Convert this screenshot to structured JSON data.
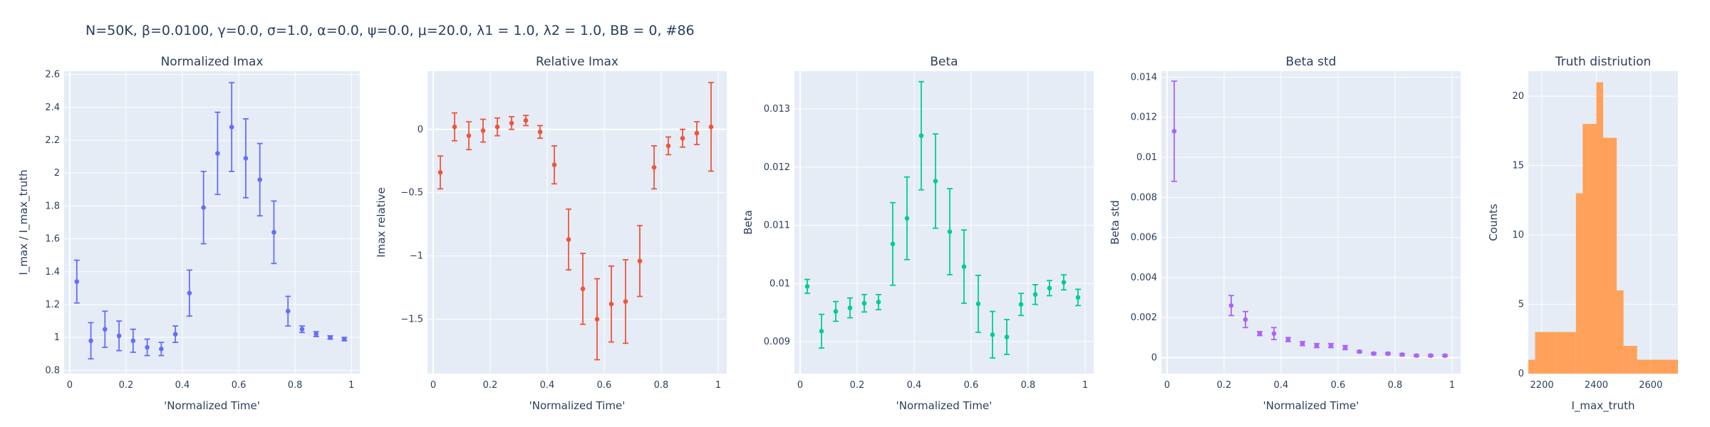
{
  "figure": {
    "suptitle": "N=50K, β=0.0100, γ=0.0, σ=1.0,  α=0.0, ψ=0.0, μ=20.0, λ1 = 1.0, λ2 = 1.0, BB = 0, #86",
    "plot_bg": "#e5ecf6",
    "grid_color": "#ffffff"
  },
  "chart_data": [
    {
      "type": "scatter",
      "title": "Normalized Imax",
      "xlabel": "'Normalized Time'",
      "ylabel": "I_max / I_max_truth",
      "color": "#636efa",
      "xlim": [
        -0.02,
        1.03
      ],
      "ylim": [
        0.78,
        2.62
      ],
      "xticks": [
        0,
        0.2,
        0.4,
        0.6,
        0.8,
        1
      ],
      "xtick_labels": [
        "0",
        "0.2",
        "0.4",
        "0.6",
        "0.8",
        "1"
      ],
      "yticks": [
        0.8,
        1,
        1.2,
        1.4,
        1.6,
        1.8,
        2,
        2.2,
        2.4,
        2.6
      ],
      "ytick_labels": [
        "0.8",
        "1",
        "1.2",
        "1.4",
        "1.6",
        "1.8",
        "2",
        "2.2",
        "2.4",
        "2.6"
      ],
      "x": [
        0.025,
        0.075,
        0.125,
        0.175,
        0.225,
        0.275,
        0.325,
        0.375,
        0.425,
        0.475,
        0.525,
        0.575,
        0.625,
        0.675,
        0.725,
        0.775,
        0.825,
        0.875,
        0.925,
        0.975
      ],
      "y": [
        1.34,
        0.98,
        1.05,
        1.01,
        0.98,
        0.94,
        0.93,
        1.02,
        1.27,
        1.79,
        2.12,
        2.28,
        2.09,
        1.96,
        1.64,
        1.16,
        1.05,
        1.02,
        1.0,
        0.99
      ],
      "err": [
        0.13,
        0.11,
        0.11,
        0.09,
        0.07,
        0.05,
        0.04,
        0.05,
        0.14,
        0.22,
        0.25,
        0.27,
        0.24,
        0.22,
        0.19,
        0.09,
        0.02,
        0.015,
        0.01,
        0.01
      ]
    },
    {
      "type": "scatter",
      "title": "Relative Imax",
      "xlabel": "'Normalized Time'",
      "ylabel": "Imax relative",
      "color": "#ef553b",
      "xlim": [
        -0.02,
        1.03
      ],
      "ylim": [
        -1.93,
        0.46
      ],
      "xticks": [
        0,
        0.2,
        0.4,
        0.6,
        0.8,
        1
      ],
      "xtick_labels": [
        "0",
        "0.2",
        "0.4",
        "0.6",
        "0.8",
        "1"
      ],
      "yticks": [
        0,
        -0.5,
        -1,
        -1.5
      ],
      "ytick_labels": [
        "0",
        "−0.5",
        "−1",
        "−1.5"
      ],
      "x": [
        0.025,
        0.075,
        0.125,
        0.175,
        0.225,
        0.275,
        0.325,
        0.375,
        0.425,
        0.475,
        0.525,
        0.575,
        0.625,
        0.675,
        0.725,
        0.775,
        0.825,
        0.875,
        0.925,
        0.975
      ],
      "y": [
        -0.34,
        0.02,
        -0.05,
        -0.01,
        0.02,
        0.05,
        0.07,
        -0.02,
        -0.28,
        -0.87,
        -1.26,
        -1.5,
        -1.38,
        -1.36,
        -1.04,
        -0.3,
        -0.13,
        -0.07,
        -0.03,
        0.02
      ],
      "err": [
        0.13,
        0.11,
        0.11,
        0.09,
        0.07,
        0.05,
        0.04,
        0.05,
        0.15,
        0.24,
        0.28,
        0.32,
        0.3,
        0.33,
        0.28,
        0.17,
        0.07,
        0.07,
        0.09,
        0.35
      ]
    },
    {
      "type": "scatter",
      "title": "Beta",
      "xlabel": "'Normalized Time'",
      "ylabel": "Beta",
      "color": "#00cc96",
      "xlim": [
        -0.02,
        1.03
      ],
      "ylim": [
        0.00845,
        0.01365
      ],
      "xticks": [
        0,
        0.2,
        0.4,
        0.6,
        0.8,
        1
      ],
      "xtick_labels": [
        "0",
        "0.2",
        "0.4",
        "0.6",
        "0.8",
        "1"
      ],
      "yticks": [
        0.009,
        0.01,
        0.011,
        0.012,
        0.013
      ],
      "ytick_labels": [
        "0.009",
        "0.01",
        "0.011",
        "0.012",
        "0.013"
      ],
      "x": [
        0.025,
        0.075,
        0.125,
        0.175,
        0.225,
        0.275,
        0.325,
        0.375,
        0.425,
        0.475,
        0.525,
        0.575,
        0.625,
        0.675,
        0.725,
        0.775,
        0.825,
        0.875,
        0.925,
        0.975
      ],
      "y": [
        0.00995,
        0.00918,
        0.00952,
        0.00958,
        0.00966,
        0.00968,
        0.01068,
        0.01112,
        0.01254,
        0.01176,
        0.01089,
        0.01029,
        0.00965,
        0.00912,
        0.00908,
        0.00964,
        0.00981,
        0.00992,
        0.01002,
        0.00976
      ],
      "err": [
        0.00012,
        0.00029,
        0.00017,
        0.00017,
        0.00015,
        0.00013,
        0.00071,
        0.00071,
        0.00093,
        0.00081,
        0.00074,
        0.00063,
        0.00049,
        0.0004,
        0.0003,
        0.00019,
        0.00017,
        0.00013,
        0.00013,
        0.00014
      ]
    },
    {
      "type": "scatter",
      "title": "Beta std",
      "xlabel": "'Normalized Time'",
      "ylabel": "Beta std",
      "color": "#ab63fa",
      "xlim": [
        -0.02,
        1.03
      ],
      "ylim": [
        -0.0008,
        0.0143
      ],
      "xticks": [
        0,
        0.2,
        0.4,
        0.6,
        0.8,
        1
      ],
      "xtick_labels": [
        "0",
        "0.2",
        "0.4",
        "0.6",
        "0.8",
        "1"
      ],
      "yticks": [
        0,
        0.002,
        0.004,
        0.006,
        0.008,
        0.01,
        0.012,
        0.014
      ],
      "ytick_labels": [
        "0",
        "0.002",
        "0.004",
        "0.006",
        "0.008",
        "0.01",
        "0.012",
        "0.014"
      ],
      "x": [
        0.025,
        0.225,
        0.275,
        0.325,
        0.375,
        0.425,
        0.475,
        0.525,
        0.575,
        0.625,
        0.675,
        0.725,
        0.775,
        0.825,
        0.875,
        0.925,
        0.975
      ],
      "y": [
        0.0113,
        0.0026,
        0.0019,
        0.0012,
        0.0012,
        0.0009,
        0.0007,
        0.0006,
        0.0006,
        0.0005,
        0.0003,
        0.0002,
        0.0002,
        0.00015,
        0.0001,
        0.0001,
        0.0001
      ],
      "err": [
        0.0025,
        0.0005,
        0.0004,
        0.0001,
        0.0003,
        0.0001,
        0.0001,
        0.0001,
        0.0001,
        0.0001,
        5e-05,
        5e-05,
        5e-05,
        5e-05,
        5e-05,
        5e-05,
        5e-05
      ]
    },
    {
      "type": "histogram",
      "title": "Truth distriution",
      "xlabel": "I_max_truth",
      "ylabel": "Counts",
      "color": "#ffa15a",
      "xlim": [
        2150,
        2700
      ],
      "ylim": [
        0,
        21.8
      ],
      "xticks": [
        2200,
        2400,
        2600
      ],
      "xtick_labels": [
        "2200",
        "2400",
        "2600"
      ],
      "yticks": [
        0,
        5,
        10,
        15,
        20
      ],
      "ytick_labels": [
        "0",
        "5",
        "10",
        "15",
        "20"
      ],
      "bin_edges": [
        2150,
        2175,
        2250,
        2325,
        2350,
        2375,
        2400,
        2425,
        2450,
        2475,
        2500,
        2525,
        2550,
        2600,
        2700
      ],
      "counts": [
        1,
        3,
        3,
        13,
        18,
        18,
        21,
        17,
        17,
        6,
        2,
        2,
        1,
        1
      ]
    }
  ]
}
